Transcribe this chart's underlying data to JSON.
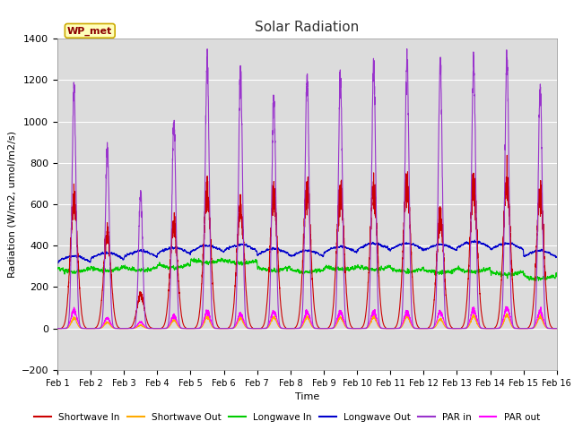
{
  "title": "Solar Radiation",
  "ylabel": "Radiation (W/m2, umol/m2/s)",
  "xlabel": "Time",
  "ylim": [
    -200,
    1400
  ],
  "yticks": [
    -200,
    0,
    200,
    400,
    600,
    800,
    1000,
    1200,
    1400
  ],
  "num_days": 15,
  "annotation_text": "WP_met",
  "bg_color": "#dcdcdc",
  "grid_color": "white",
  "series": {
    "shortwave_in": {
      "color": "#cc0000",
      "label": "Shortwave In",
      "lw": 0.8
    },
    "shortwave_out": {
      "color": "#ffaa00",
      "label": "Shortwave Out",
      "lw": 0.8
    },
    "longwave_in": {
      "color": "#00cc00",
      "label": "Longwave In",
      "lw": 0.8
    },
    "longwave_out": {
      "color": "#0000cc",
      "label": "Longwave Out",
      "lw": 0.8
    },
    "par_in": {
      "color": "#9933cc",
      "label": "PAR in",
      "lw": 0.8
    },
    "par_out": {
      "color": "#ff00ff",
      "label": "PAR out",
      "lw": 0.8
    }
  },
  "xtick_labels": [
    "Feb 1",
    "Feb 2",
    "Feb 3",
    "Feb 4",
    "Feb 5",
    "Feb 6",
    "Feb 7",
    "Feb 8",
    "Feb 9",
    "Feb 10",
    "Feb 11",
    "Feb 12",
    "Feb 13",
    "Feb 14",
    "Feb 15",
    "Feb 16"
  ],
  "par_in_peaks": [
    1150,
    860,
    650,
    1000,
    1290,
    1240,
    1110,
    1205,
    1210,
    1275,
    1300,
    1280,
    1300,
    1290,
    1170
  ],
  "sw_in_peaks": [
    610,
    450,
    160,
    500,
    650,
    580,
    650,
    650,
    670,
    670,
    690,
    530,
    690,
    700,
    640
  ],
  "sw_out_peaks": [
    50,
    30,
    15,
    40,
    55,
    50,
    55,
    55,
    55,
    55,
    60,
    45,
    60,
    65,
    55
  ],
  "par_out_peaks": [
    85,
    50,
    30,
    60,
    80,
    70,
    80,
    80,
    80,
    80,
    80,
    80,
    90,
    100,
    80
  ],
  "lw_in_base": [
    290,
    295,
    295,
    310,
    335,
    330,
    295,
    285,
    300,
    300,
    290,
    285,
    290,
    275,
    255
  ],
  "lw_out_base": [
    320,
    335,
    345,
    360,
    370,
    375,
    355,
    345,
    365,
    380,
    380,
    375,
    390,
    380,
    345
  ]
}
